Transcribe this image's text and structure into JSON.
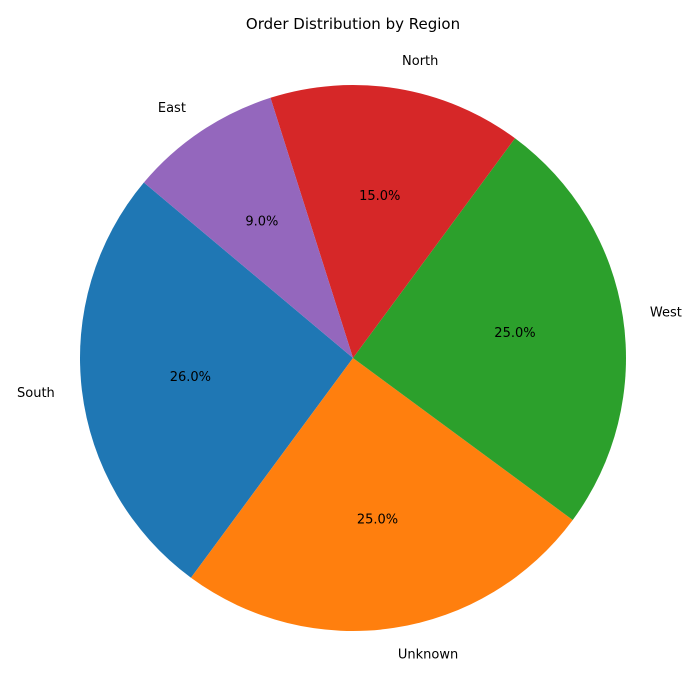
{
  "chart_data": {
    "type": "pie",
    "title": "Order Distribution by Region",
    "start_angle_deg": 140,
    "direction": "counterclockwise",
    "slices": [
      {
        "label": "South",
        "value": 26.0,
        "pct_label": "26.0%",
        "color": "#1f77b4"
      },
      {
        "label": "Unknown",
        "value": 25.0,
        "pct_label": "25.0%",
        "color": "#ff7f0e"
      },
      {
        "label": "West",
        "value": 25.0,
        "pct_label": "25.0%",
        "color": "#2ca02c"
      },
      {
        "label": "North",
        "value": 15.0,
        "pct_label": "15.0%",
        "color": "#d62728"
      },
      {
        "label": "East",
        "value": 9.0,
        "pct_label": "9.0%",
        "color": "#9467bd"
      }
    ]
  }
}
